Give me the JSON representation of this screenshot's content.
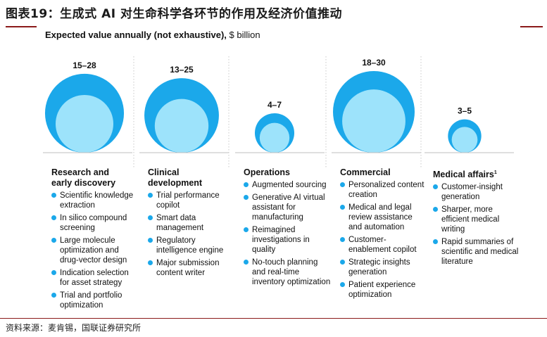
{
  "header": {
    "title": "图表19：生成式 AI 对生命科学各环节的作用及经济价值推动"
  },
  "chart_data": {
    "type": "bubble",
    "title": "Expected value annually (not exhaustive), $ billion",
    "title_bold": "Expected value annually (not exhaustive),",
    "title_unit": " $ billion",
    "colors": {
      "outer": "#1ba8ea",
      "inner": "#9de3fb",
      "divider": "#bfbfbf"
    },
    "categories": [
      {
        "name": "Research and\nearly discovery",
        "superscript": "",
        "range_label": "15–28",
        "low": 15,
        "high": 28,
        "items": [
          "Scientific knowledge extraction",
          "In silico compound screening",
          "Large molecule optimization and drug-vector design",
          "Indication selection for asset strategy",
          "Trial and portfolio optimization"
        ]
      },
      {
        "name": "Clinical\ndevelopment",
        "superscript": "",
        "range_label": "13–25",
        "low": 13,
        "high": 25,
        "items": [
          "Trial performance copilot",
          "Smart data management",
          "Regulatory intelligence engine",
          "Major submission content writer"
        ]
      },
      {
        "name": "Operations",
        "superscript": "",
        "range_label": "4–7",
        "low": 4,
        "high": 7,
        "items": [
          "Augmented sourcing",
          "Generative AI virtual assistant for manufacturing",
          "Reimagined investigations in quality",
          "No-touch planning and real-time inventory optimization"
        ]
      },
      {
        "name": "Commercial",
        "superscript": "",
        "range_label": "18–30",
        "low": 18,
        "high": 30,
        "items": [
          "Personalized content creation",
          "Medical and legal review assistance and automation",
          "Customer-enablement copilot",
          "Strategic insights generation",
          "Patient experience optimization"
        ]
      },
      {
        "name": "Medical affairs",
        "superscript": "1",
        "range_label": "3–5",
        "low": 3,
        "high": 5,
        "items": [
          "Customer-insight generation",
          "Sharper, more efficient medical writing",
          "Rapid summaries of scientific and medical literature"
        ]
      }
    ]
  },
  "footer": {
    "source": "资料来源：麦肯锡，国联证券研究所"
  }
}
